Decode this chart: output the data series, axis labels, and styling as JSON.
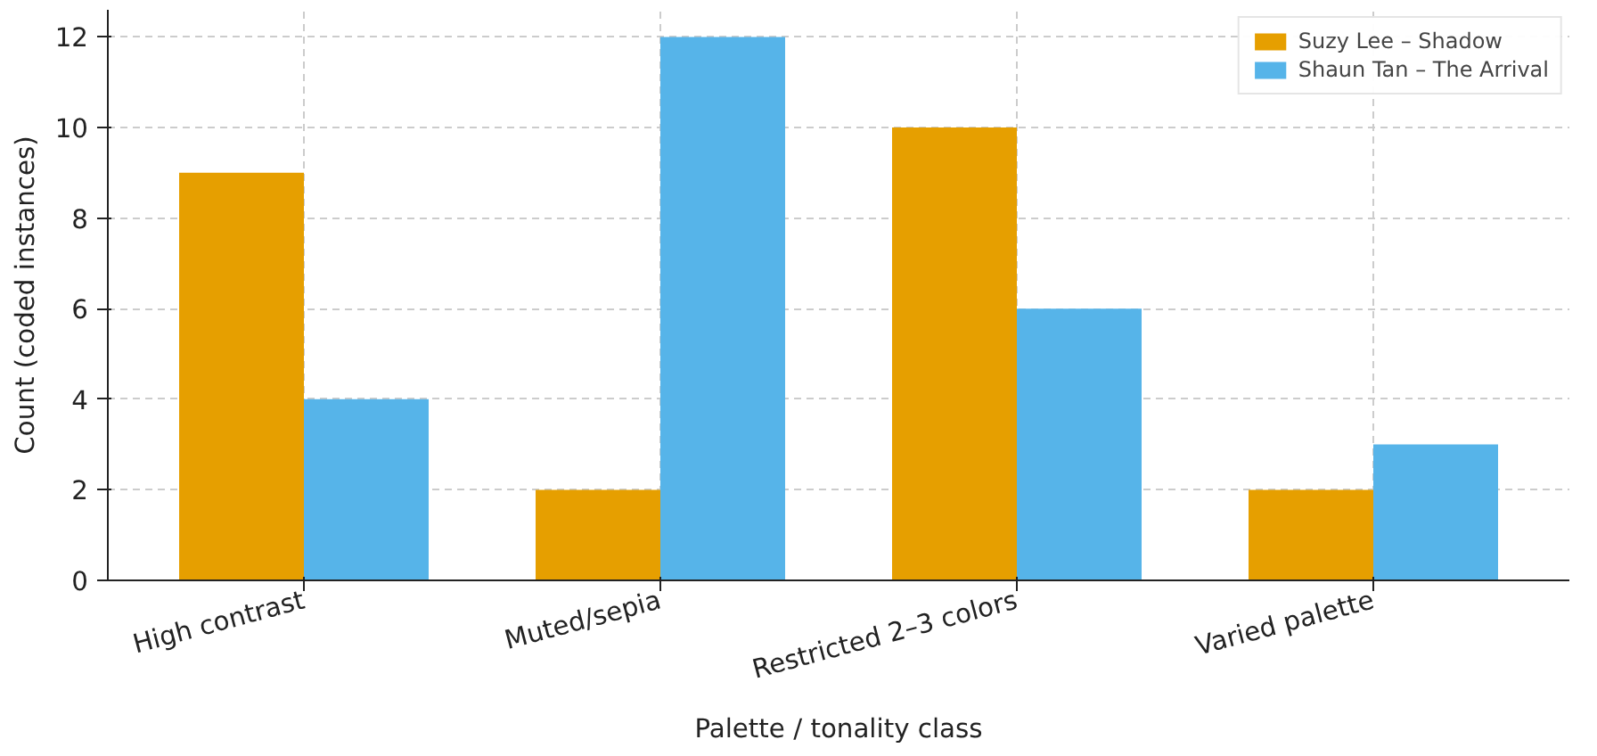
{
  "chart_data": {
    "type": "bar",
    "xlabel": "Palette / tonality class",
    "ylabel": "Count (coded instances)",
    "categories": [
      "High contrast",
      "Muted/sepia",
      "Restricted 2–3 colors",
      "Varied palette"
    ],
    "series": [
      {
        "name": "Suzy Lee – Shadow",
        "color": "#e69f00",
        "values": [
          9,
          2,
          10,
          2
        ]
      },
      {
        "name": "Shaun Tan – The Arrival",
        "color": "#56b4e9",
        "values": [
          4,
          12,
          6,
          3
        ]
      }
    ],
    "ylim": [
      0,
      12.6
    ],
    "yticks": [
      0,
      2,
      4,
      6,
      8,
      10,
      12
    ],
    "grid": true,
    "legend": "top right"
  }
}
